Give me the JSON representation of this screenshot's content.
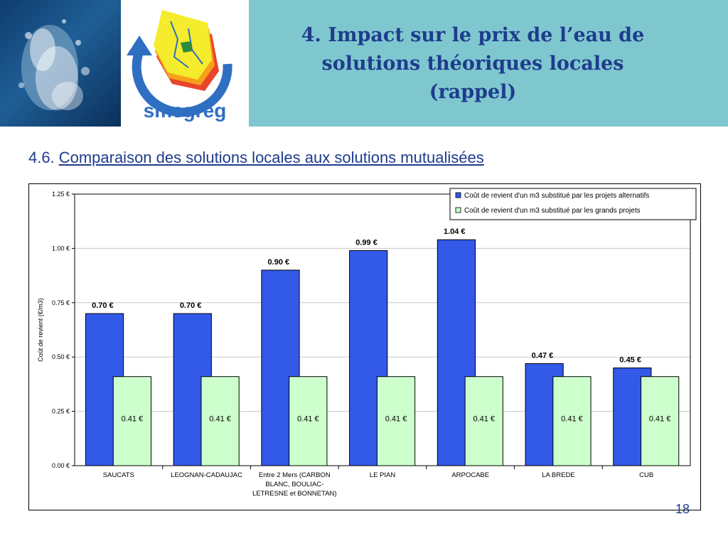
{
  "header": {
    "title_line1": "4. Impact sur le prix de l’eau de",
    "title_line2": "solutions théoriques locales",
    "title_line3": "(rappel)",
    "logo_text": "smegreg"
  },
  "section": {
    "number": "4.6.",
    "title": "Comparaison des solutions locales aux solutions mutualisées"
  },
  "page_number": "18",
  "colors": {
    "header_bg": "#7fc7cf",
    "title": "#1f3c8c",
    "series_alt": "#3359e8",
    "series_grand": "#ccffcc"
  },
  "chart_data": {
    "type": "bar",
    "categories": [
      [
        "SAUCATS"
      ],
      [
        "LEOGNAN-CADAUJAC"
      ],
      [
        "Entre 2 Mers (CARBON",
        "BLANC, BOULIAC-",
        "LETRESNE et BONNETAN)"
      ],
      [
        "LE PIAN"
      ],
      [
        "ARPOCABE"
      ],
      [
        "LA BREDE"
      ],
      [
        "CUB"
      ]
    ],
    "series": [
      {
        "name": "Coût de revient d'un m3 substitué par les projets alternatifs",
        "values": [
          0.7,
          0.7,
          0.9,
          0.99,
          1.04,
          0.47,
          0.45
        ],
        "labels": [
          "0.70 €",
          "0.70 €",
          "0.90 €",
          "0.99 €",
          "1.04 €",
          "0.47 €",
          "0.45 €"
        ],
        "color": "#3359e8"
      },
      {
        "name": "Coût de revient d'un m3 substitué par les grands projets",
        "values": [
          0.41,
          0.41,
          0.41,
          0.41,
          0.41,
          0.41,
          0.41
        ],
        "labels": [
          "0.41 €",
          "0.41 €",
          "0.41 €",
          "0.41 €",
          "0.41 €",
          "0.41 €",
          "0.41 €"
        ],
        "color": "#ccffcc"
      }
    ],
    "ylabel": "Coût de revient (€/m3)",
    "ylim": [
      0,
      1.25
    ],
    "yticks": [
      0,
      0.25,
      0.5,
      0.75,
      1.0,
      1.25
    ],
    "ytick_labels": [
      "0.00 €",
      "0.25 €",
      "0.50 €",
      "0.75 €",
      "1.00 €",
      "1.25 €"
    ],
    "grid": true,
    "legend_position": "top-right"
  }
}
